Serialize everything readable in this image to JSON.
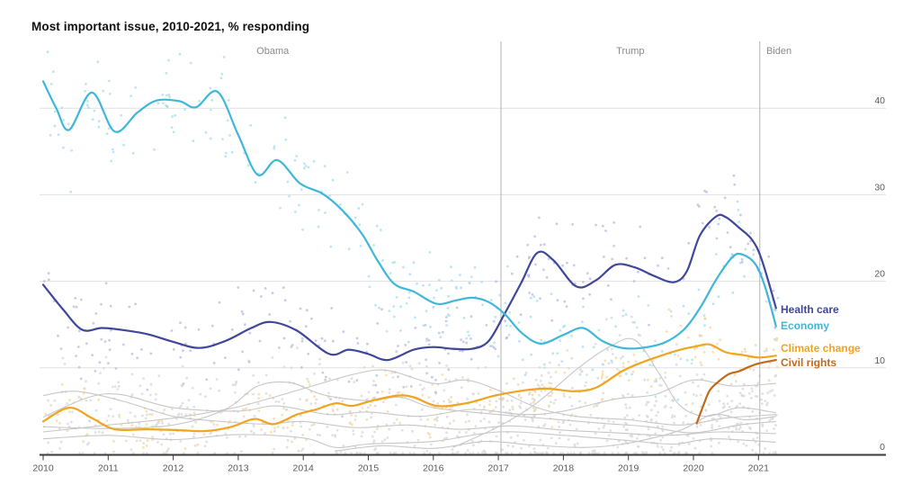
{
  "title": "Most important issue, 2010-2021, % responding",
  "colors": {
    "background": "#ffffff",
    "title_text": "#111111",
    "axis_line": "#3a3a3a",
    "gridline": "#e1e1e1",
    "tick_label": "#5a5a5a",
    "era_line": "#b3b3b3",
    "era_label": "#8a8a8a",
    "health": "#3f479b",
    "economy": "#3eb7d9",
    "climate": "#f0a41f",
    "civil": "#c2691b",
    "other_line": "#c7c7c7",
    "health_dot": "#b7b9e2",
    "economy_dot": "#a5ddf0",
    "climate_dot": "#f6d79b",
    "other_dot": "#d9d9d9"
  },
  "eras": [
    {
      "label": "Obama",
      "divider_year": null,
      "label_year": 2013.53,
      "anchor": "middle"
    },
    {
      "label": "Trump",
      "divider_year": 2017.04,
      "label_year": 2019.03,
      "anchor": "middle"
    },
    {
      "label": "Biden",
      "divider_year": 2021.02,
      "label_year": 2021.12,
      "anchor": "start"
    }
  ],
  "chart_data": {
    "type": "line+scatter",
    "title": "Most important issue, 2010-2021, % responding",
    "xlabel": "",
    "ylabel": "% responding",
    "x_domain": [
      2010,
      2021.3
    ],
    "ylim": [
      0,
      47
    ],
    "yticks": [
      0,
      10,
      20,
      30,
      40
    ],
    "xticks": [
      2010,
      2011,
      2012,
      2013,
      2014,
      2015,
      2016,
      2017,
      2018,
      2019,
      2020,
      2021
    ],
    "grid": true,
    "legend_position": "right-end-labels",
    "series": [
      {
        "name": "Health care",
        "key": "health",
        "scatter_dots": 260,
        "scatter_sd": 2.6,
        "points": [
          [
            2010.0,
            19.6
          ],
          [
            2010.3,
            16.8
          ],
          [
            2010.6,
            14.4
          ],
          [
            2010.9,
            14.6
          ],
          [
            2011.2,
            14.4
          ],
          [
            2011.6,
            13.9
          ],
          [
            2012.0,
            13.0
          ],
          [
            2012.4,
            12.3
          ],
          [
            2012.8,
            13.1
          ],
          [
            2013.2,
            14.6
          ],
          [
            2013.5,
            15.3
          ],
          [
            2013.9,
            14.3
          ],
          [
            2014.4,
            11.6
          ],
          [
            2014.7,
            12.1
          ],
          [
            2015.0,
            11.6
          ],
          [
            2015.3,
            10.9
          ],
          [
            2015.7,
            12.1
          ],
          [
            2016.0,
            12.4
          ],
          [
            2016.3,
            12.2
          ],
          [
            2016.6,
            12.2
          ],
          [
            2016.85,
            13.1
          ],
          [
            2017.1,
            16.3
          ],
          [
            2017.35,
            19.8
          ],
          [
            2017.6,
            23.3
          ],
          [
            2017.85,
            22.4
          ],
          [
            2018.2,
            19.4
          ],
          [
            2018.5,
            20.1
          ],
          [
            2018.8,
            21.9
          ],
          [
            2019.1,
            21.6
          ],
          [
            2019.4,
            20.6
          ],
          [
            2019.7,
            19.9
          ],
          [
            2019.9,
            21.2
          ],
          [
            2020.1,
            25.3
          ],
          [
            2020.35,
            27.5
          ],
          [
            2020.5,
            27.4
          ],
          [
            2020.7,
            26.2
          ],
          [
            2020.9,
            24.8
          ],
          [
            2021.05,
            22.5
          ],
          [
            2021.27,
            16.9
          ]
        ]
      },
      {
        "name": "Economy",
        "key": "economy",
        "scatter_dots": 270,
        "scatter_sd": 2.8,
        "points": [
          [
            2010.0,
            43.1
          ],
          [
            2010.2,
            40.0
          ],
          [
            2010.4,
            37.5
          ],
          [
            2010.75,
            41.8
          ],
          [
            2011.1,
            37.3
          ],
          [
            2011.45,
            39.5
          ],
          [
            2011.75,
            40.9
          ],
          [
            2012.1,
            40.8
          ],
          [
            2012.35,
            40.1
          ],
          [
            2012.68,
            41.9
          ],
          [
            2013.0,
            36.9
          ],
          [
            2013.3,
            32.3
          ],
          [
            2013.6,
            34.0
          ],
          [
            2013.95,
            31.3
          ],
          [
            2014.3,
            30.1
          ],
          [
            2014.6,
            28.2
          ],
          [
            2014.9,
            25.5
          ],
          [
            2015.15,
            22.3
          ],
          [
            2015.4,
            19.7
          ],
          [
            2015.7,
            18.8
          ],
          [
            2016.05,
            17.4
          ],
          [
            2016.35,
            17.8
          ],
          [
            2016.6,
            18.1
          ],
          [
            2016.85,
            17.6
          ],
          [
            2017.1,
            16.2
          ],
          [
            2017.35,
            14.1
          ],
          [
            2017.65,
            12.8
          ],
          [
            2018.0,
            13.8
          ],
          [
            2018.3,
            14.6
          ],
          [
            2018.6,
            13.1
          ],
          [
            2018.9,
            12.3
          ],
          [
            2019.2,
            12.3
          ],
          [
            2019.55,
            12.9
          ],
          [
            2019.85,
            14.4
          ],
          [
            2020.1,
            16.9
          ],
          [
            2020.35,
            20.2
          ],
          [
            2020.6,
            22.8
          ],
          [
            2020.75,
            23.1
          ],
          [
            2020.95,
            22.0
          ],
          [
            2021.1,
            19.4
          ],
          [
            2021.27,
            14.8
          ]
        ]
      },
      {
        "name": "Climate change",
        "key": "climate",
        "scatter_dots": 250,
        "scatter_sd": 1.7,
        "points": [
          [
            2010.0,
            3.8
          ],
          [
            2010.4,
            5.4
          ],
          [
            2010.75,
            4.2
          ],
          [
            2011.1,
            2.9
          ],
          [
            2011.6,
            2.9
          ],
          [
            2012.1,
            2.8
          ],
          [
            2012.5,
            2.7
          ],
          [
            2012.9,
            3.2
          ],
          [
            2013.25,
            4.1
          ],
          [
            2013.55,
            3.5
          ],
          [
            2013.9,
            4.6
          ],
          [
            2014.2,
            5.2
          ],
          [
            2014.5,
            5.9
          ],
          [
            2014.75,
            5.6
          ],
          [
            2015.05,
            6.2
          ],
          [
            2015.45,
            6.8
          ],
          [
            2015.7,
            6.6
          ],
          [
            2016.05,
            5.6
          ],
          [
            2016.5,
            5.9
          ],
          [
            2016.95,
            6.8
          ],
          [
            2017.4,
            7.4
          ],
          [
            2017.75,
            7.6
          ],
          [
            2018.15,
            7.3
          ],
          [
            2018.5,
            7.7
          ],
          [
            2018.9,
            9.6
          ],
          [
            2019.2,
            10.6
          ],
          [
            2019.5,
            11.4
          ],
          [
            2019.8,
            12.1
          ],
          [
            2020.05,
            12.5
          ],
          [
            2020.25,
            12.7
          ],
          [
            2020.5,
            11.8
          ],
          [
            2020.75,
            11.5
          ],
          [
            2021.0,
            11.2
          ],
          [
            2021.27,
            11.4
          ]
        ]
      },
      {
        "name": "Civil rights",
        "key": "civil",
        "scatter_dots": 0,
        "scatter_sd": 0,
        "points": [
          [
            2020.05,
            3.6
          ],
          [
            2020.15,
            5.6
          ],
          [
            2020.25,
            7.4
          ],
          [
            2020.4,
            8.5
          ],
          [
            2020.55,
            9.3
          ],
          [
            2020.7,
            9.6
          ],
          [
            2020.85,
            10.1
          ],
          [
            2021.0,
            10.5
          ],
          [
            2021.27,
            10.9
          ]
        ]
      }
    ],
    "other_series": [
      {
        "points": [
          [
            2010,
            4.3
          ],
          [
            2010.7,
            6.6
          ],
          [
            2011.2,
            6.9
          ],
          [
            2012,
            5.4
          ],
          [
            2013,
            5.0
          ],
          [
            2013.6,
            5.6
          ],
          [
            2014.4,
            4.6
          ],
          [
            2015,
            4.9
          ],
          [
            2015.8,
            4.4
          ],
          [
            2016.6,
            5.2
          ],
          [
            2017.4,
            4.6
          ],
          [
            2018,
            5.0
          ],
          [
            2018.8,
            6.4
          ],
          [
            2019.4,
            6.9
          ],
          [
            2020,
            8.6
          ],
          [
            2020.6,
            7.9
          ],
          [
            2021.27,
            8.2
          ]
        ]
      },
      {
        "points": [
          [
            2010,
            3.2
          ],
          [
            2011,
            3.0
          ],
          [
            2012,
            3.4
          ],
          [
            2012.8,
            5.2
          ],
          [
            2013.3,
            7.9
          ],
          [
            2013.8,
            8.3
          ],
          [
            2014.3,
            6.9
          ],
          [
            2015,
            6.2
          ],
          [
            2015.5,
            6.6
          ],
          [
            2016,
            5.4
          ],
          [
            2017,
            4.6
          ],
          [
            2017.8,
            4.1
          ],
          [
            2018.6,
            3.6
          ],
          [
            2019.3,
            3.2
          ],
          [
            2020,
            2.5
          ],
          [
            2020.7,
            3.4
          ],
          [
            2021.27,
            3.8
          ]
        ]
      },
      {
        "points": [
          [
            2010,
            6.8
          ],
          [
            2010.5,
            7.3
          ],
          [
            2011.2,
            6.2
          ],
          [
            2012,
            4.4
          ],
          [
            2012.6,
            3.9
          ],
          [
            2013.4,
            3.5
          ],
          [
            2014,
            3.8
          ],
          [
            2014.8,
            3.1
          ],
          [
            2015.6,
            3.4
          ],
          [
            2016.4,
            2.9
          ],
          [
            2017.2,
            3.3
          ],
          [
            2018,
            2.8
          ],
          [
            2018.8,
            2.5
          ],
          [
            2019.6,
            2.2
          ],
          [
            2020.4,
            2.6
          ],
          [
            2021.27,
            2.4
          ]
        ]
      },
      {
        "points": [
          [
            2010,
            2.6
          ],
          [
            2011,
            3.4
          ],
          [
            2012,
            4.2
          ],
          [
            2013,
            5.5
          ],
          [
            2014,
            7.6
          ],
          [
            2014.8,
            9.3
          ],
          [
            2015.3,
            9.7
          ],
          [
            2016,
            8.2
          ],
          [
            2016.5,
            8.6
          ],
          [
            2017,
            7.4
          ],
          [
            2017.6,
            5.4
          ],
          [
            2018.2,
            4.4
          ],
          [
            2019,
            4.0
          ],
          [
            2019.8,
            3.4
          ],
          [
            2020.5,
            4.2
          ],
          [
            2021.27,
            4.6
          ]
        ]
      },
      {
        "points": [
          [
            2010,
            1.8
          ],
          [
            2011,
            2.2
          ],
          [
            2012,
            1.7
          ],
          [
            2013,
            2.3
          ],
          [
            2014,
            1.9
          ],
          [
            2014.5,
            0.8
          ],
          [
            2015,
            1.2
          ],
          [
            2016,
            1.5
          ],
          [
            2017,
            2.6
          ],
          [
            2018,
            2.2
          ],
          [
            2019,
            1.6
          ],
          [
            2019.7,
            1.2
          ],
          [
            2020.3,
            1.8
          ],
          [
            2021.27,
            1.4
          ]
        ]
      },
      {
        "points": [
          [
            2016.3,
            0.8
          ],
          [
            2017,
            3.2
          ],
          [
            2017.6,
            6.0
          ],
          [
            2018.2,
            9.8
          ],
          [
            2018.7,
            12.4
          ],
          [
            2019.1,
            13.2
          ],
          [
            2019.5,
            9.0
          ],
          [
            2019.8,
            5.6
          ],
          [
            2020.2,
            4.4
          ],
          [
            2020.7,
            5.4
          ],
          [
            2021.27,
            4.8
          ]
        ]
      },
      {
        "points": [
          [
            2014.5,
            0.4
          ],
          [
            2015.2,
            1.0
          ],
          [
            2016,
            0.7
          ],
          [
            2016.8,
            1.5
          ],
          [
            2017.5,
            1.1
          ],
          [
            2018.3,
            0.8
          ],
          [
            2019,
            1.3
          ],
          [
            2019.8,
            2.8
          ],
          [
            2020.3,
            4.6
          ],
          [
            2020.8,
            4.0
          ],
          [
            2021.27,
            4.4
          ]
        ]
      }
    ],
    "gray_scatter_dots": 850,
    "gray_scatter_sd": 2.0
  }
}
